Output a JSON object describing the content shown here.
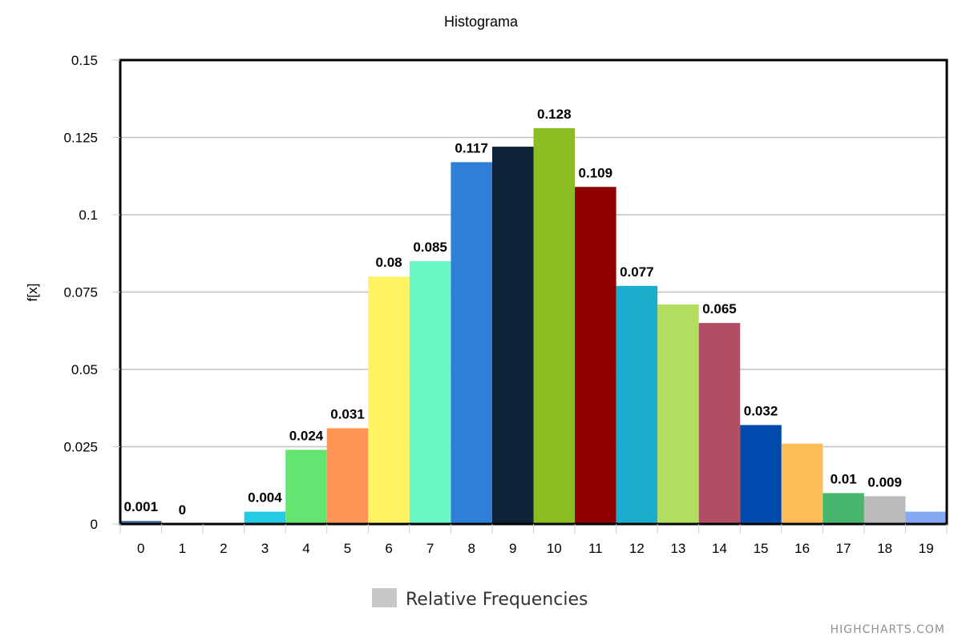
{
  "chart_data": {
    "type": "bar",
    "title": "Histograma",
    "xlabel": "",
    "ylabel": "f[x]",
    "ylim": [
      0,
      0.15
    ],
    "yticks": [
      "0",
      "0.025",
      "0.05",
      "0.075",
      "0.1",
      "0.125",
      "0.15"
    ],
    "yticks_values": [
      0,
      0.025,
      0.05,
      0.075,
      0.1,
      0.125,
      0.15
    ],
    "categories": [
      "0",
      "1",
      "2",
      "3",
      "4",
      "5",
      "6",
      "7",
      "8",
      "9",
      "10",
      "11",
      "12",
      "13",
      "14",
      "15",
      "16",
      "17",
      "18",
      "19"
    ],
    "series": [
      {
        "name": "Relative Frequencies",
        "values": [
          0.001,
          0,
          0,
          0.004,
          0.024,
          0.031,
          0.08,
          0.085,
          0.117,
          0.122,
          0.128,
          0.109,
          0.077,
          0.071,
          0.065,
          0.032,
          0.026,
          0.01,
          0.009,
          0.004
        ],
        "labels": [
          "0.001",
          "0",
          "",
          "0.004",
          "0.024",
          "0.031",
          "0.08",
          "0.085",
          "0.117",
          "",
          "0.128",
          "0.109",
          "0.077",
          "",
          "0.065",
          "0.032",
          "",
          "0.01",
          "0.009",
          ""
        ],
        "colors": [
          "#4572A7",
          "#AA4643",
          "#89A54E",
          "#24CBE5",
          "#64E572",
          "#FF9655",
          "#FFF263",
          "#6AF9C4",
          "#2F7ED8",
          "#0D233A",
          "#8BBC21",
          "#910000",
          "#1AADCE",
          "#B2DE60",
          "#B04F63",
          "#004AAD",
          "#FFBD55",
          "#48B66E",
          "#BBBBBB",
          "#85A8F2"
        ]
      }
    ],
    "grid": true,
    "legend": {
      "position": "bottom-center",
      "label": "Relative Frequencies",
      "color": "#C8C8C8"
    },
    "credits": "HIGHCHARTS.COM"
  }
}
